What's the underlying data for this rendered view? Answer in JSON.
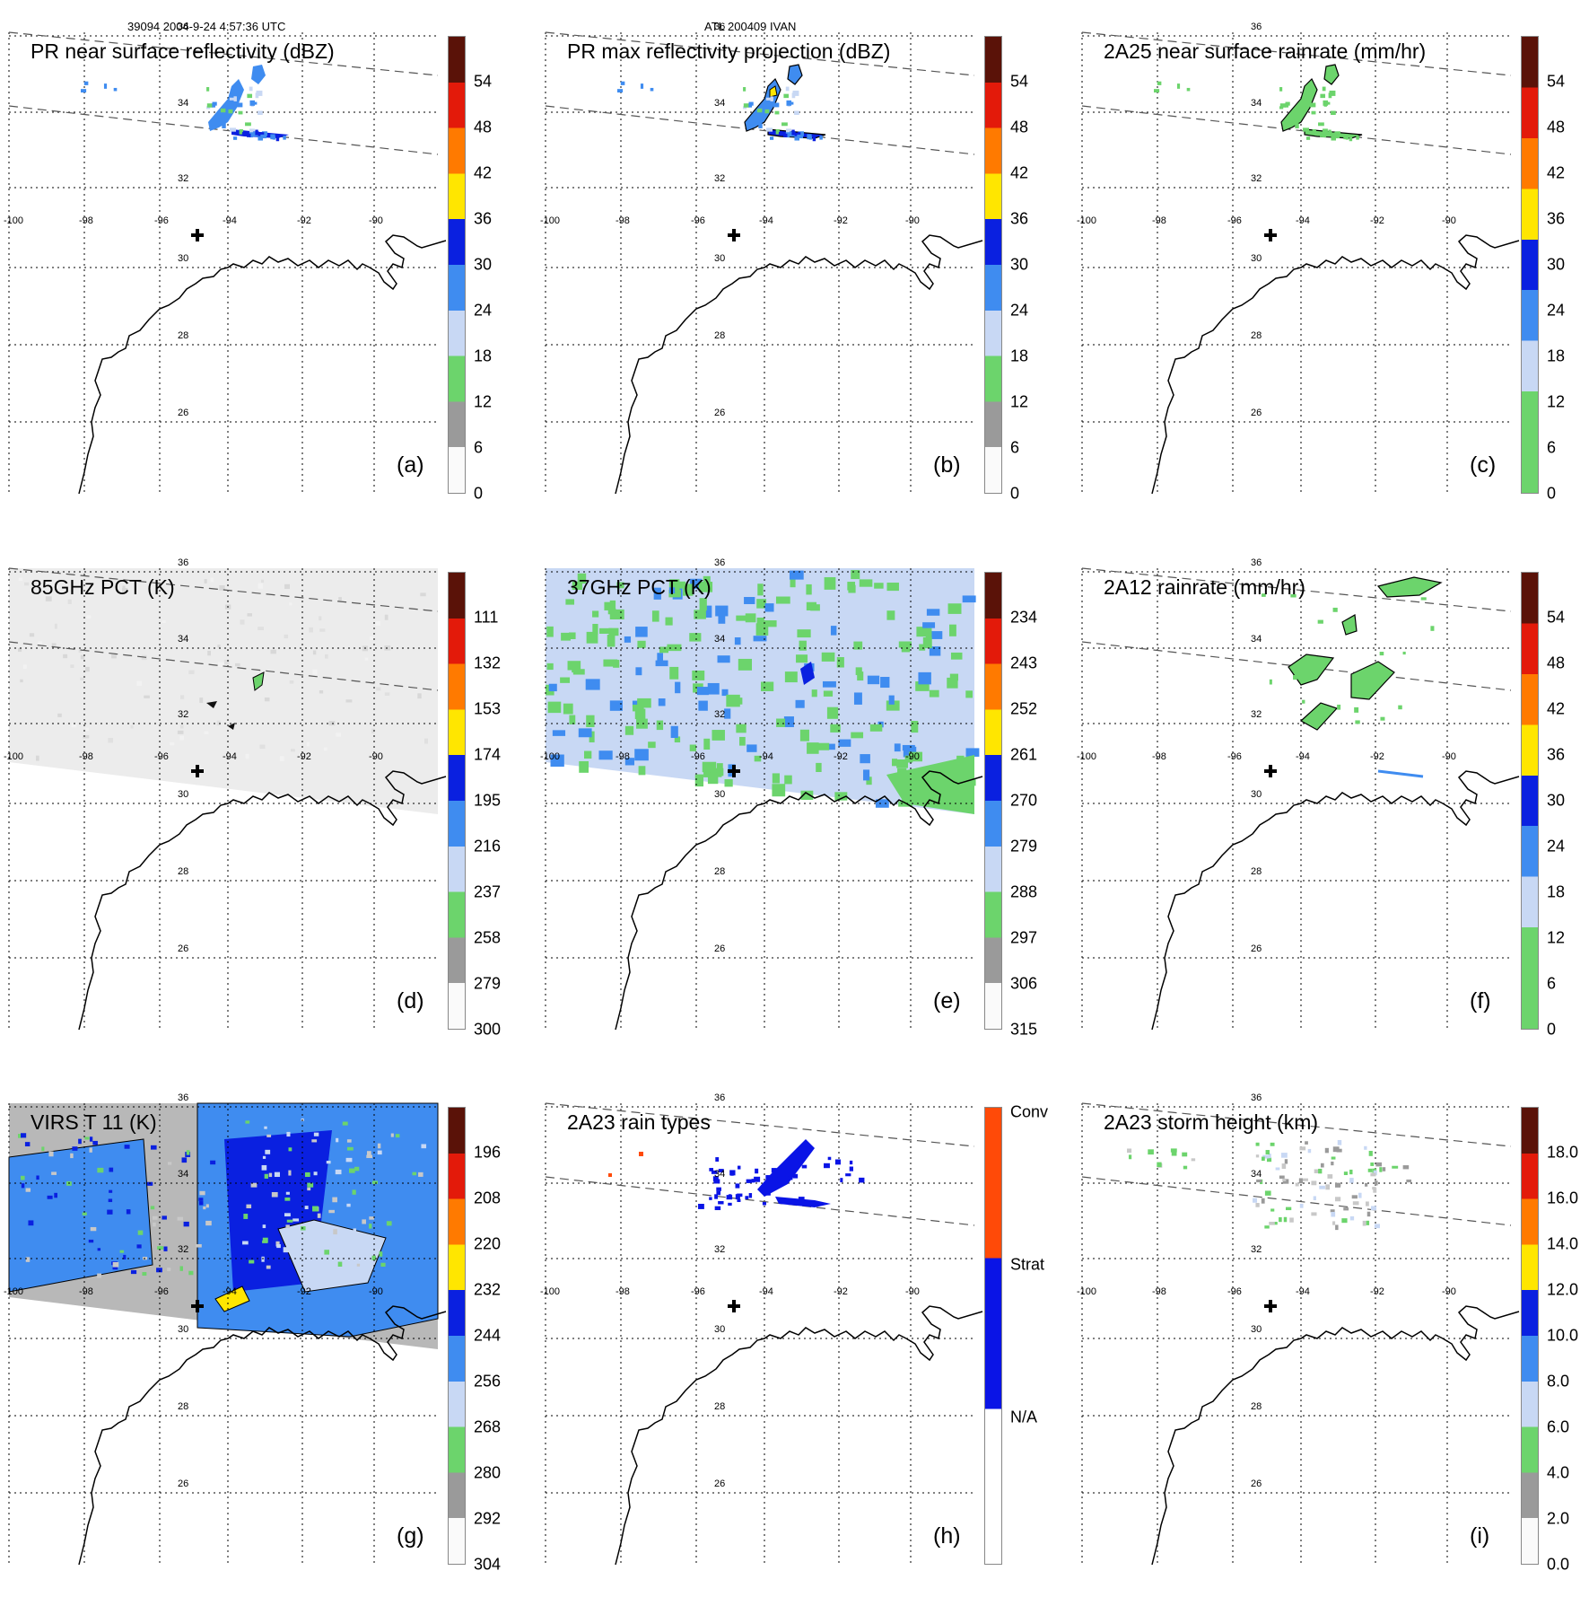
{
  "header": {
    "left": "39094 2004-9-24 4:57:36 UTC",
    "center": "ATL 200409 IVAN"
  },
  "map": {
    "lon_labels": [
      "-100",
      "-98",
      "-96",
      "-94",
      "-92",
      "-90"
    ],
    "lat_labels": [
      "36",
      "34",
      "32",
      "30",
      "28",
      "26"
    ],
    "center_marker": "storm-center-cross-icon"
  },
  "colors": {
    "green": "#6cd46c",
    "blue_light": "#c8d8f4",
    "blue_mid": "#3f8cf0",
    "blue_dark": "#0a20e0",
    "yellow": "#ffe600",
    "orange": "#ff7a00",
    "red": "#e31a0a",
    "darkred": "#5a1208",
    "gray": "#9a9a9a",
    "conv": "#ff4a08",
    "strat": "#0a14e6"
  },
  "panels": [
    {
      "id": "a",
      "title": "PR near surface reflectivity (dBZ)",
      "label": "(a)",
      "colorbar_ticks": [
        "54",
        "48",
        "42",
        "36",
        "30",
        "24",
        "18",
        "12",
        "6",
        "0"
      ]
    },
    {
      "id": "b",
      "title": "PR max reflectivity projection (dBZ)",
      "label": "(b)",
      "colorbar_ticks": [
        "54",
        "48",
        "42",
        "36",
        "30",
        "24",
        "18",
        "12",
        "6",
        "0"
      ]
    },
    {
      "id": "c",
      "title": "2A25 near surface rainrate (mm/hr)",
      "label": "(c)",
      "colorbar_ticks": [
        "54",
        "48",
        "42",
        "36",
        "30",
        "24",
        "18",
        "12",
        "6",
        "0"
      ]
    },
    {
      "id": "d",
      "title": "85GHz PCT (K)",
      "label": "(d)",
      "colorbar_ticks": [
        "111",
        "132",
        "153",
        "174",
        "195",
        "216",
        "237",
        "258",
        "279",
        "300"
      ]
    },
    {
      "id": "e",
      "title": "37GHz PCT (K)",
      "label": "(e)",
      "colorbar_ticks": [
        "234",
        "243",
        "252",
        "261",
        "270",
        "279",
        "288",
        "297",
        "306",
        "315"
      ]
    },
    {
      "id": "f",
      "title": "2A12 rainrate (mm/hr)",
      "label": "(f)",
      "colorbar_ticks": [
        "54",
        "48",
        "42",
        "36",
        "30",
        "24",
        "18",
        "12",
        "6",
        "0"
      ]
    },
    {
      "id": "g",
      "title": "VIRS T 11 (K)",
      "label": "(g)",
      "colorbar_ticks": [
        "196",
        "208",
        "220",
        "232",
        "244",
        "256",
        "268",
        "280",
        "292",
        "304"
      ]
    },
    {
      "id": "h",
      "title": "2A23 rain types",
      "label": "(h)",
      "colorbar_ticks": [
        "Conv",
        "Strat",
        "N/A"
      ]
    },
    {
      "id": "i",
      "title": "2A23 storm height (km)",
      "label": "(i)",
      "colorbar_ticks": [
        "18.0",
        "16.0",
        "14.0",
        "12.0",
        "10.0",
        "8.0",
        "6.0",
        "4.0",
        "2.0",
        "0.0"
      ]
    }
  ]
}
